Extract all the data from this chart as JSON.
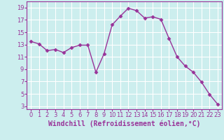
{
  "x": [
    0,
    1,
    2,
    3,
    4,
    5,
    6,
    7,
    8,
    9,
    10,
    11,
    12,
    13,
    14,
    15,
    16,
    17,
    18,
    19,
    20,
    21,
    22,
    23
  ],
  "y": [
    13.5,
    13.1,
    12.0,
    12.2,
    11.7,
    12.5,
    12.9,
    12.9,
    8.5,
    11.5,
    16.2,
    17.6,
    18.9,
    18.5,
    17.3,
    17.5,
    17.1,
    14.0,
    11.0,
    9.5,
    8.5,
    6.9,
    4.9,
    3.3
  ],
  "line_color": "#993399",
  "marker": "D",
  "marker_size": 2.5,
  "bg_color": "#cceeee",
  "grid_color": "#aadddd",
  "xlabel": "Windchill (Refroidissement éolien,°C)",
  "xlim": [
    -0.5,
    23.5
  ],
  "ylim": [
    2.5,
    20
  ],
  "yticks": [
    3,
    5,
    7,
    9,
    11,
    13,
    15,
    17,
    19
  ],
  "xticks": [
    0,
    1,
    2,
    3,
    4,
    5,
    6,
    7,
    8,
    9,
    10,
    11,
    12,
    13,
    14,
    15,
    16,
    17,
    18,
    19,
    20,
    21,
    22,
    23
  ],
  "tick_color": "#993399",
  "label_color": "#993399",
  "xlabel_fontsize": 7,
  "tick_fontsize": 6
}
